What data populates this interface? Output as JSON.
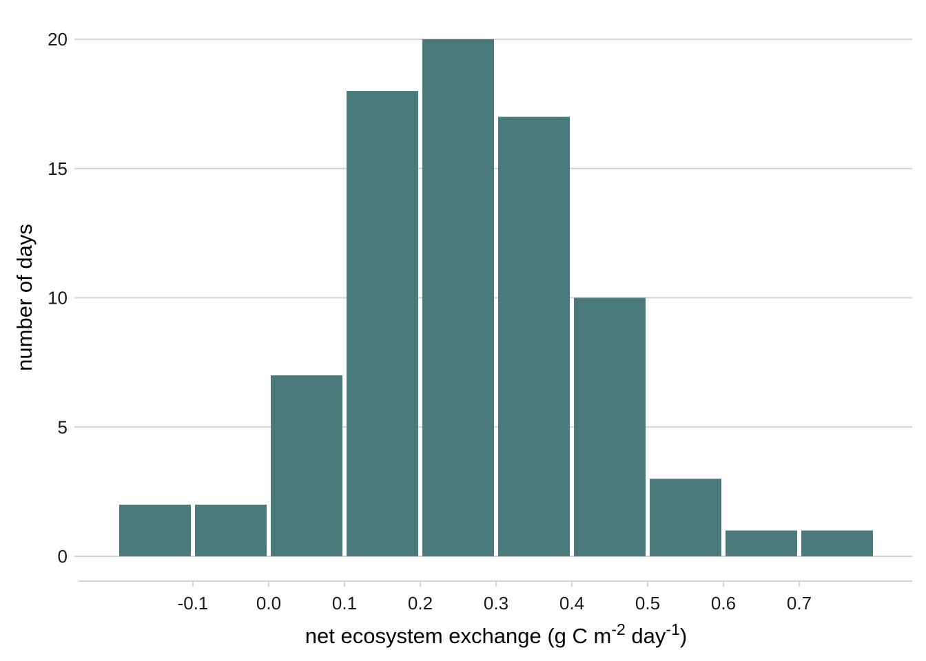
{
  "chart_data": {
    "type": "bar",
    "subtype": "histogram",
    "bin_width": 0.1,
    "bins": [
      {
        "start": -0.2,
        "end": -0.1,
        "count": 2
      },
      {
        "start": -0.1,
        "end": 0.0,
        "count": 2
      },
      {
        "start": 0.0,
        "end": 0.1,
        "count": 7
      },
      {
        "start": 0.1,
        "end": 0.2,
        "count": 18
      },
      {
        "start": 0.2,
        "end": 0.3,
        "count": 20
      },
      {
        "start": 0.3,
        "end": 0.4,
        "count": 17
      },
      {
        "start": 0.4,
        "end": 0.5,
        "count": 10
      },
      {
        "start": 0.5,
        "end": 0.6,
        "count": 3
      },
      {
        "start": 0.6,
        "end": 0.7,
        "count": 1
      },
      {
        "start": 0.7,
        "end": 0.8,
        "count": 1
      }
    ],
    "xlabel": {
      "parts": [
        {
          "text": "net ecosystem exchange (g C m",
          "sup": false
        },
        {
          "text": "-2",
          "sup": true
        },
        {
          "text": " day",
          "sup": false
        },
        {
          "text": "-1",
          "sup": true
        },
        {
          "text": ")",
          "sup": false
        }
      ]
    },
    "ylabel": "number of days",
    "xlim": [
      -0.2,
      0.8
    ],
    "ylim": [
      0,
      20
    ],
    "x_ticks": [
      {
        "value": -0.1,
        "label": "-0.1"
      },
      {
        "value": 0.0,
        "label": "0.0"
      },
      {
        "value": 0.1,
        "label": "0.1"
      },
      {
        "value": 0.2,
        "label": "0.2"
      },
      {
        "value": 0.3,
        "label": "0.3"
      },
      {
        "value": 0.4,
        "label": "0.4"
      },
      {
        "value": 0.5,
        "label": "0.5"
      },
      {
        "value": 0.6,
        "label": "0.6"
      },
      {
        "value": 0.7,
        "label": "0.7"
      }
    ],
    "y_ticks": [
      {
        "value": 0,
        "label": "0"
      },
      {
        "value": 5,
        "label": "5"
      },
      {
        "value": 10,
        "label": "10"
      },
      {
        "value": 15,
        "label": "15"
      },
      {
        "value": 20,
        "label": "20"
      }
    ],
    "grid": "horizontal",
    "bar_color": "#4a7a7c",
    "grid_color": "#d4d4d4"
  }
}
